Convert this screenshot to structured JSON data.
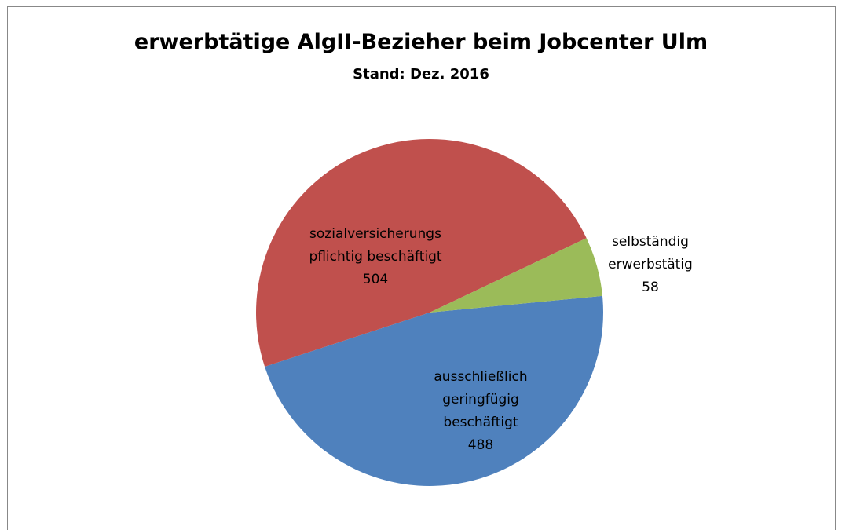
{
  "chart_data": {
    "type": "pie",
    "title": "erwerbtätige AlgII-Bezieher beim Jobcenter Ulm",
    "subtitle": "Stand: Dez. 2016",
    "categories": [
      "ausschließlich\ngeringfügig\nbeschäftigt",
      "sozialversicherungs\npflichtig beschäftigt",
      "selbständig\nerwerbstätig"
    ],
    "values": [
      488,
      504,
      58
    ],
    "colors": [
      "#4f81bd",
      "#c0504d",
      "#9bbb59"
    ]
  }
}
